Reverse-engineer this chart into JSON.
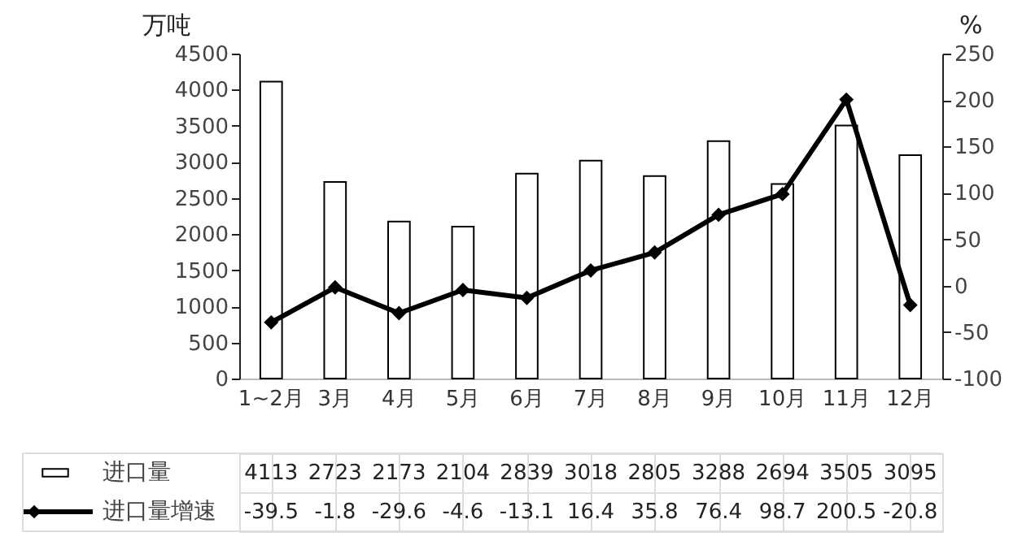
{
  "chart_data": {
    "type": "bar",
    "categories": [
      "1~2月",
      "3月",
      "4月",
      "5月",
      "6月",
      "7月",
      "8月",
      "9月",
      "10月",
      "11月",
      "12月"
    ],
    "ylabel": "万吨",
    "y2label": "%",
    "series": [
      {
        "name": "进口量",
        "color": "#ffffff",
        "values": [
          4113,
          2723,
          2173,
          2104,
          2839,
          3018,
          2805,
          3288,
          2694,
          3505,
          3095
        ]
      },
      {
        "name": "进口量增速",
        "type": "line",
        "axis": "y2",
        "color": "#000000",
        "values": [
          -39.5,
          -1.8,
          -29.6,
          -4.6,
          -13.1,
          16.4,
          35.8,
          76.4,
          98.7,
          200.5,
          -20.8
        ]
      }
    ],
    "ylim": [
      0,
      4500
    ],
    "yticks": [
      0,
      500,
      1000,
      1500,
      2000,
      2500,
      3000,
      3500,
      4000,
      4500
    ],
    "y2lim": [
      -100,
      250
    ],
    "y2ticks": [
      -100,
      -50,
      0,
      50,
      100,
      150,
      200,
      250
    ],
    "marker": "diamond",
    "legend": "bottom left",
    "data_labels": true
  }
}
